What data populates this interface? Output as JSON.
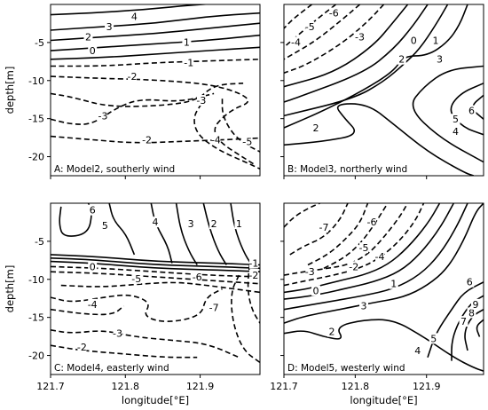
{
  "chart_data": {
    "type": "contour",
    "shared": {
      "xlabel": "longitude[°E]",
      "ylabel": "depth[m]",
      "xticks": [
        "121.7",
        "121.8",
        "121.9"
      ],
      "yticks": [
        "-5",
        "-10",
        "-15",
        "-20"
      ],
      "xlim": [
        121.7,
        121.98
      ],
      "ylim": [
        -22.5,
        0
      ],
      "negative_contours": "dashed",
      "positive_contours": "solid"
    },
    "panels": [
      {
        "id": "A",
        "title": "A: Model2, southerly wind",
        "contour_labels": [
          "4",
          "3",
          "2",
          "1",
          "0",
          "-1",
          "-2",
          "-3",
          "-3",
          "-2",
          "-4",
          "-5"
        ]
      },
      {
        "id": "B",
        "title": "B: Model3, northerly wind",
        "contour_labels": [
          "-6",
          "-5",
          "-4",
          "-3",
          "0",
          "1",
          "2",
          "3",
          "6",
          "5",
          "4",
          "2"
        ]
      },
      {
        "id": "C",
        "title": "C: Model4, easterly wind",
        "contour_labels": [
          "6",
          "5",
          "4",
          "3",
          "2",
          "1",
          "0",
          "-1",
          "-2",
          "-5",
          "-6",
          "-4",
          "-3",
          "-2",
          "-7"
        ]
      },
      {
        "id": "D",
        "title": "D: Model5, westerly wind",
        "contour_labels": [
          "-7",
          "-6",
          "-5",
          "-4",
          "-3",
          "-2",
          "0",
          "1",
          "3",
          "2",
          "4",
          "5",
          "6",
          "7",
          "8",
          "9"
        ]
      }
    ]
  }
}
